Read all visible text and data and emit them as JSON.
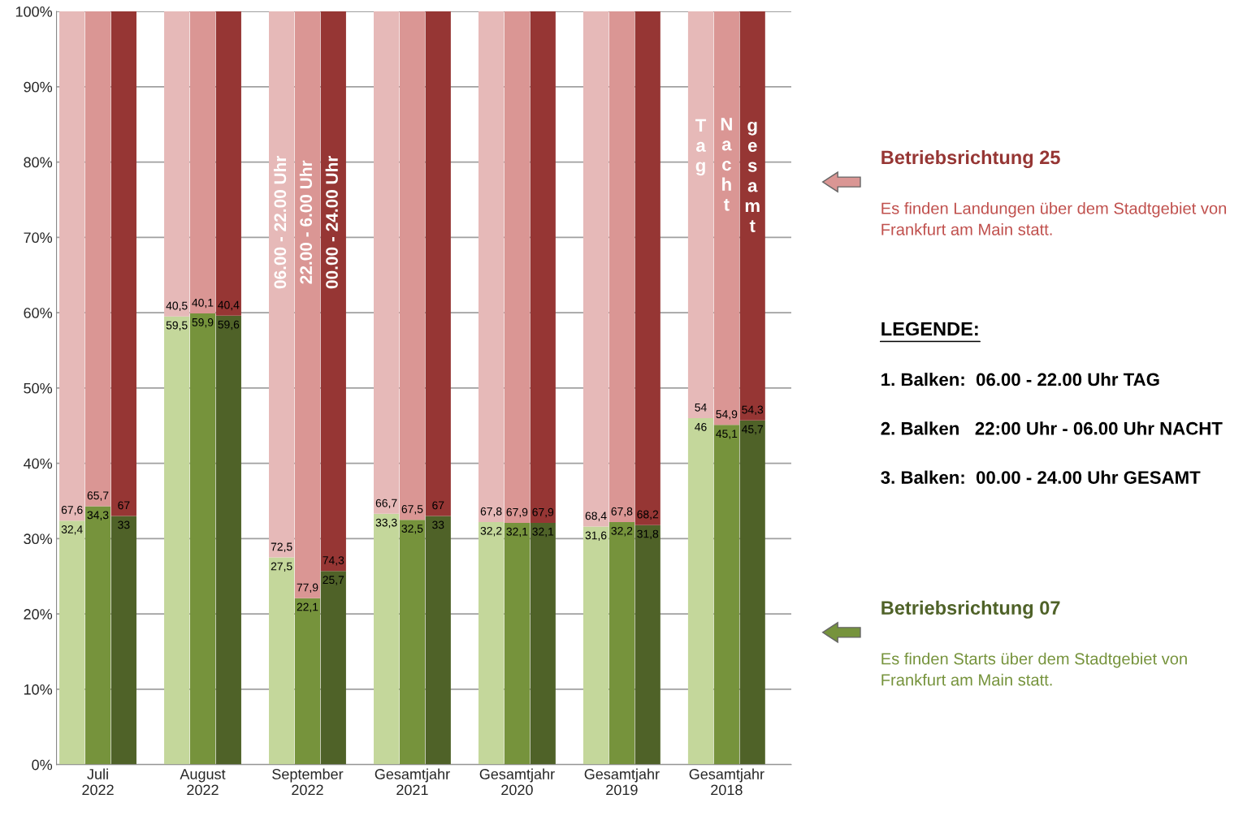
{
  "chart_data": {
    "type": "bar",
    "stacked": true,
    "categories": [
      null,
      "Juli\n2022",
      null,
      null,
      "August\n2022",
      null,
      null,
      "September\n2022",
      null,
      null,
      "Gesamtjahr\n2021",
      null,
      null,
      "Gesamtjahr\n2020",
      null,
      null,
      "Gesamtjahr\n2019",
      null,
      null,
      "Gesamtjahr\n2018",
      null
    ],
    "series": [
      {
        "name": "Betriebsrichtung 07",
        "colors": [
          "#c4d79b",
          "#76933c",
          "#4f6228",
          "#c4d79b",
          "#76933c",
          "#4f6228",
          "#c4d79b",
          "#76933c",
          "#4f6228",
          "#c4d79b",
          "#76933c",
          "#4f6228",
          "#c4d79b",
          "#76933c",
          "#4f6228",
          "#c4d79b",
          "#76933c",
          "#4f6228",
          "#c4d79b",
          "#76933c",
          "#4f6228"
        ],
        "values": [
          32.4,
          34.3,
          33,
          59.5,
          59.9,
          59.6,
          27.5,
          22.1,
          25.7,
          33.3,
          32.5,
          33,
          32.2,
          32.1,
          32.1,
          31.6,
          32.2,
          31.8,
          46,
          45.1,
          45.7
        ],
        "value_labels": [
          "32,4",
          "34,3",
          "33",
          "59,5",
          "59,9",
          "59,6",
          "27,5",
          "22,1",
          "25,7",
          "33,3",
          "32,5",
          "33",
          "32,2",
          "32,1",
          "32,1",
          "31,6",
          "32,2",
          "31,8",
          "46",
          "45,1",
          "45,7"
        ]
      },
      {
        "name": "Betriebsrichtung 25",
        "colors": [
          "#e6b9b8",
          "#da9694",
          "#963634",
          "#e6b9b8",
          "#da9694",
          "#963634",
          "#e6b9b8",
          "#da9694",
          "#963634",
          "#e6b9b8",
          "#da9694",
          "#963634",
          "#e6b9b8",
          "#da9694",
          "#963634",
          "#e6b9b8",
          "#da9694",
          "#963634",
          "#e6b9b8",
          "#da9694",
          "#963634"
        ],
        "values": [
          67.6,
          65.7,
          67,
          40.5,
          40.1,
          40.4,
          72.5,
          77.9,
          74.3,
          66.7,
          67.5,
          67,
          67.8,
          67.9,
          67.9,
          68.4,
          67.8,
          68.2,
          54,
          54.9,
          54.3
        ],
        "value_labels": [
          "67,6",
          "65,7",
          "67",
          "40,5",
          "40,1",
          "40,4",
          "72,5",
          "77,9",
          "74,3",
          "66,7",
          "67,5",
          "67",
          "67,8",
          "67,9",
          "67,9",
          "68,4",
          "67,8",
          "68,2",
          "54",
          "54,9",
          "54,3"
        ]
      }
    ],
    "ylim": [
      0,
      100
    ],
    "yticks": [
      {
        "value": 0,
        "label": "0%"
      },
      {
        "value": 10,
        "label": "10%"
      },
      {
        "value": 20,
        "label": "20%"
      },
      {
        "value": 30,
        "label": "30%"
      },
      {
        "value": 40,
        "label": "40%"
      },
      {
        "value": 50,
        "label": "50%"
      },
      {
        "value": 60,
        "label": "60%"
      },
      {
        "value": 70,
        "label": "70%"
      },
      {
        "value": 80,
        "label": "80%"
      },
      {
        "value": 90,
        "label": "90%"
      },
      {
        "value": 100,
        "label": "100%"
      }
    ],
    "grid": "y",
    "legend": "right",
    "annotations": [
      "06.00 - 22.00 Uhr",
      "22.00 - 6.00 Uhr",
      "00.00 - 24.00 Uhr",
      "Tag",
      "Nacht",
      "gesamt",
      "Es finden Landungen über dem Stadtgebiet von\nFrankfurt am Main statt.",
      "LEGENDE:",
      "1. Balken:  06.00 - 22.00 Uhr TAG",
      "2. Balken   22:00 Uhr - 06.00 Uhr NACHT",
      "3. Balken:  00.00 - 24.00 Uhr GESAMT",
      "Es finden Starts über dem Stadtgebiet von\nFrankfurt am Main statt."
    ]
  }
}
